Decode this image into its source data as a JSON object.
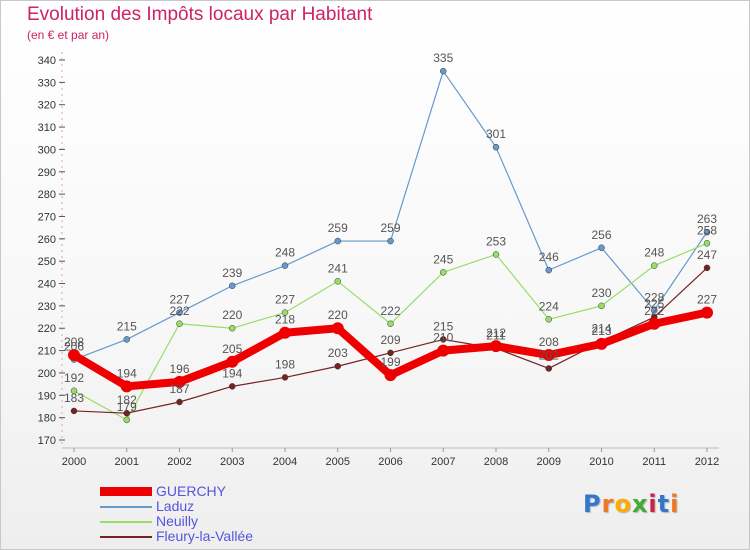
{
  "title": "Evolution des Impôts locaux par Habitant",
  "subtitle": "(en € et par an)",
  "logo": {
    "text": "Proxiti",
    "letters": [
      {
        "ch": "P",
        "color": "#3377cc"
      },
      {
        "ch": "r",
        "color": "#ee7722"
      },
      {
        "ch": "o",
        "color": "#ffaa00"
      },
      {
        "ch": "x",
        "color": "#44aa33"
      },
      {
        "ch": "i",
        "color": "#cc2244"
      },
      {
        "ch": "t",
        "color": "#3377cc"
      },
      {
        "ch": "i",
        "color": "#ee7722"
      }
    ]
  },
  "chart_data": {
    "type": "line",
    "title": "Evolution des Impôts locaux par Habitant",
    "subtitle": "(en € et par an)",
    "xlabel": "",
    "ylabel": "",
    "ylim": [
      170,
      340
    ],
    "yticks": [
      170,
      180,
      190,
      200,
      210,
      220,
      230,
      240,
      250,
      260,
      270,
      280,
      290,
      300,
      310,
      320,
      330,
      340
    ],
    "categories": [
      "2000",
      "2001",
      "2002",
      "2003",
      "2004",
      "2005",
      "2006",
      "2007",
      "2008",
      "2009",
      "2010",
      "2011",
      "2012"
    ],
    "grid": false,
    "legend_position": "bottom-left",
    "series": [
      {
        "name": "GUERCHY",
        "color": "#ee0000",
        "values": [
          208,
          194,
          196,
          205,
          218,
          220,
          199,
          210,
          212,
          208,
          213,
          222,
          227
        ]
      },
      {
        "name": "Laduz",
        "color": "#6699cc",
        "values": [
          206,
          215,
          227,
          239,
          248,
          259,
          259,
          335,
          301,
          246,
          256,
          228,
          263
        ]
      },
      {
        "name": "Neuilly",
        "color": "#99dd66",
        "values": [
          192,
          179,
          222,
          220,
          227,
          241,
          222,
          245,
          253,
          224,
          230,
          248,
          258
        ]
      },
      {
        "name": "Fleury-la-Vallée",
        "color": "#772222",
        "values": [
          183,
          182,
          187,
          194,
          198,
          203,
          209,
          215,
          211,
          202,
          214,
          225,
          247
        ]
      }
    ],
    "point_labels": [
      [
        "208",
        "194",
        "196",
        "205",
        "218",
        "220",
        "199",
        "210",
        "212",
        "208",
        "213",
        "222",
        "227"
      ],
      [
        "206",
        "215",
        "227",
        "239",
        "248",
        "259",
        "259",
        "335",
        "301",
        "246",
        "256",
        "228",
        "263"
      ],
      [
        "192",
        "179",
        "222",
        "220",
        "227",
        "241",
        "222",
        "245",
        "253",
        "224",
        "230",
        "248",
        "258"
      ],
      [
        "183",
        "182",
        "187",
        "194",
        "198",
        "203",
        "209",
        "215",
        "211",
        "202",
        "214",
        "225",
        "247"
      ]
    ]
  }
}
